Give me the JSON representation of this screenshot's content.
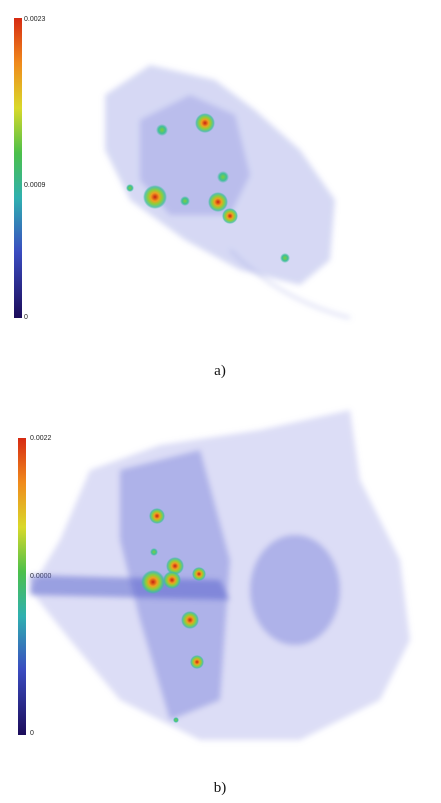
{
  "panels": [
    {
      "colorbar": {
        "ticks": [
          "0.0023",
          "0.0009",
          "0"
        ]
      },
      "caption": "a)"
    },
    {
      "colorbar": {
        "ticks": [
          "0.0022",
          "0.0000",
          "0"
        ]
      },
      "caption": "b)"
    }
  ]
}
